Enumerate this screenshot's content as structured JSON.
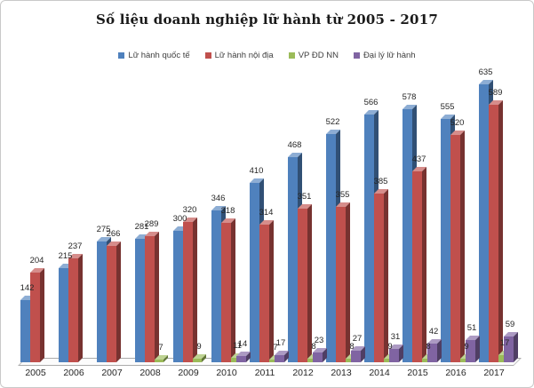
{
  "chart_data": {
    "type": "bar",
    "style": "3d-clustered-column",
    "title": "Số liệu doanh nghiệp lữ hành từ 2005 - 2017",
    "xlabel": "",
    "ylabel": "",
    "ylim": [
      0,
      660
    ],
    "grid": false,
    "legend_position": "top",
    "categories": [
      "2005",
      "2006",
      "2007",
      "2008",
      "2009",
      "2010",
      "2011",
      "2012",
      "2013",
      "2014",
      "2015",
      "2016",
      "2017"
    ],
    "series": [
      {
        "name": "Lữ hành quốc tế",
        "color": "#4F81BD",
        "values": [
          142,
          215,
          275,
          281,
          300,
          346,
          410,
          468,
          522,
          566,
          578,
          555,
          635
        ]
      },
      {
        "name": "Lữ hành nội địa",
        "color": "#C0504D",
        "values": [
          204,
          237,
          266,
          289,
          320,
          318,
          314,
          351,
          355,
          385,
          437,
          520,
          589
        ]
      },
      {
        "name": "VP ĐD NN",
        "color": "#9BBB59",
        "values": [
          null,
          null,
          null,
          7,
          9,
          11,
          7,
          8,
          8,
          9,
          8,
          9,
          17
        ]
      },
      {
        "name": "Đại lý lữ hành",
        "color": "#8064A2",
        "values": [
          null,
          null,
          null,
          null,
          null,
          14,
          17,
          23,
          27,
          31,
          42,
          51,
          59
        ]
      }
    ]
  }
}
